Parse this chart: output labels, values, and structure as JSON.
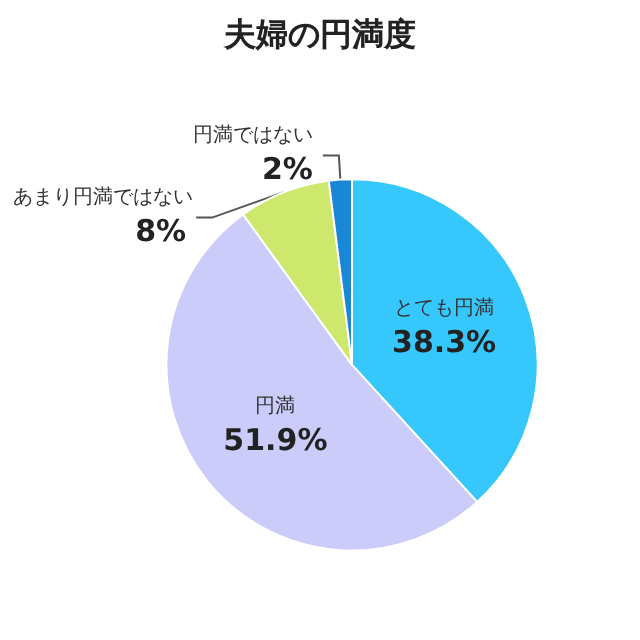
{
  "chart_data": {
    "type": "pie",
    "title": "夫婦の円満度",
    "categories": [
      "とても円満",
      "円満",
      "あまり円満ではない",
      "円満ではない"
    ],
    "values": [
      38.3,
      51.9,
      8,
      2
    ],
    "colors": [
      "#36c8fc",
      "#ccccfa",
      "#cde86c",
      "#1a86d6"
    ],
    "value_labels": [
      "38.3%",
      "51.9%",
      "8%",
      "2%"
    ],
    "legend": false
  }
}
